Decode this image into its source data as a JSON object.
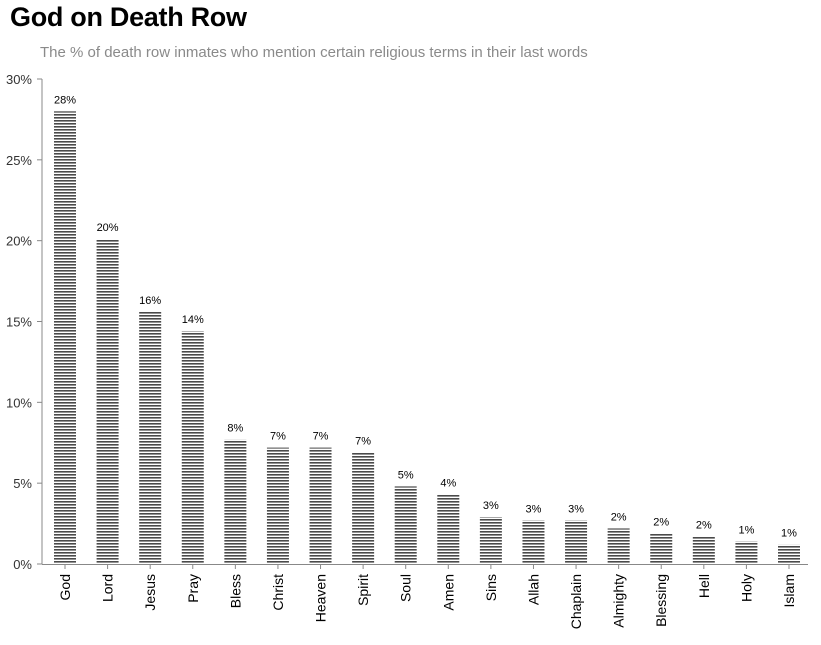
{
  "chart_data": {
    "type": "bar",
    "title": "God on Death Row",
    "subtitle": "The % of death row inmates who mention certain religious terms in their last words",
    "xlabel": "",
    "ylabel": "",
    "ylim": [
      0,
      30
    ],
    "yticks": [
      {
        "value": 0,
        "label": "0%"
      },
      {
        "value": 5,
        "label": "5%"
      },
      {
        "value": 10,
        "label": "10%"
      },
      {
        "value": 15,
        "label": "15%"
      },
      {
        "value": 20,
        "label": "20%"
      },
      {
        "value": 25,
        "label": "25%"
      },
      {
        "value": 30,
        "label": "30%"
      }
    ],
    "grid": false,
    "bar_color": "#555555",
    "categories": [
      "God",
      "Lord",
      "Jesus",
      "Pray",
      "Bless",
      "Christ",
      "Heaven",
      "Spirit",
      "Soul",
      "Amen",
      "Sins",
      "Allah",
      "Chaplain",
      "Almighty",
      "Blessing",
      "Hell",
      "Holy",
      "Islam"
    ],
    "values": [
      28.0,
      20.1,
      15.6,
      14.4,
      7.7,
      7.2,
      7.2,
      6.9,
      4.8,
      4.3,
      2.9,
      2.7,
      2.7,
      2.2,
      1.9,
      1.7,
      1.4,
      1.2
    ],
    "data_labels": [
      "28%",
      "20%",
      "16%",
      "14%",
      "8%",
      "7%",
      "7%",
      "7%",
      "5%",
      "4%",
      "3%",
      "3%",
      "3%",
      "2%",
      "2%",
      "2%",
      "1%",
      "1%"
    ]
  }
}
